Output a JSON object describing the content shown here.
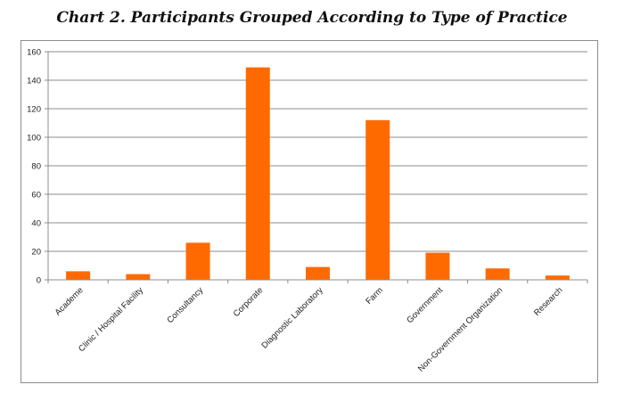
{
  "chart_data": {
    "type": "bar",
    "title": "Chart 2. Participants Grouped According to Type of Practice",
    "xlabel": "",
    "ylabel": "",
    "categories": [
      "Academe",
      "Clinic / Hospital Facility",
      "Consultancy",
      "Corporate",
      "Diagnostic Laboratory",
      "Farm",
      "Government",
      "Non-Government Organization",
      "Research"
    ],
    "values": [
      6,
      4,
      26,
      149,
      9,
      112,
      19,
      8,
      3
    ],
    "ylim": [
      0,
      160
    ],
    "yticks": [
      "0",
      "20",
      "40",
      "60",
      "80",
      "100",
      "120",
      "140",
      "160"
    ],
    "grid": true,
    "legend": "none",
    "bar_color": "#ff6a00"
  }
}
